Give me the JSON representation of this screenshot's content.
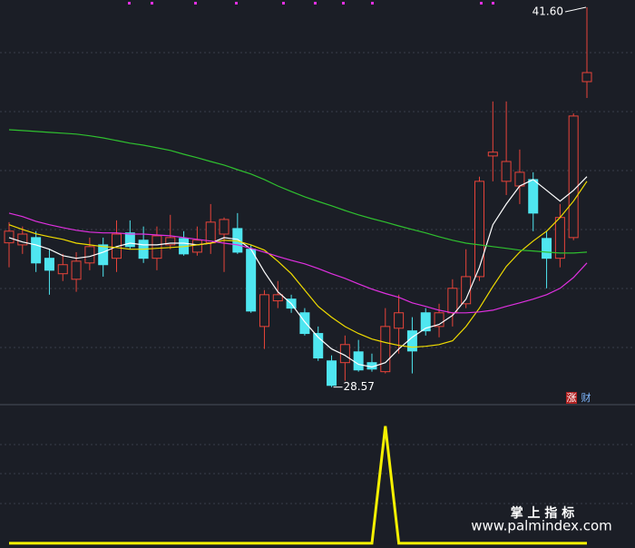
{
  "chart_data": [
    {
      "type": "candlestick",
      "up_color": "#e8443a",
      "down_color": "#4fe6f0",
      "ylim": [
        28.0,
        41.85
      ],
      "high_label": "41.60",
      "low_label": "28.57",
      "badges": [
        "涨",
        "财"
      ],
      "open": [
        33.52,
        33.45,
        33.7,
        32.99,
        32.46,
        32.27,
        32.83,
        33.45,
        32.99,
        33.86,
        33.61,
        32.99,
        33.45,
        33.67,
        33.2,
        33.52,
        33.82,
        34.01,
        33.3,
        30.65,
        31.53,
        31.59,
        31.12,
        30.41,
        29.47,
        29.41,
        29.78,
        29.41,
        29.1,
        30.59,
        30.5,
        31.12,
        30.65,
        31.12,
        31.43,
        32.36,
        36.5,
        35.63,
        35.47,
        35.69,
        33.67,
        32.99,
        33.7,
        39.05
      ],
      "close": [
        33.92,
        33.82,
        32.83,
        32.58,
        32.77,
        32.89,
        33.39,
        32.77,
        33.82,
        33.39,
        32.99,
        33.76,
        33.7,
        33.14,
        33.61,
        34.23,
        34.32,
        33.2,
        31.18,
        31.74,
        31.74,
        31.28,
        30.41,
        29.57,
        28.63,
        30.03,
        29.16,
        29.19,
        30.65,
        31.12,
        29.81,
        30.5,
        31.12,
        31.96,
        32.36,
        35.63,
        36.63,
        36.31,
        35.94,
        34.54,
        32.99,
        34.39,
        37.87,
        39.36
      ],
      "high": [
        34.23,
        34.08,
        33.92,
        33.3,
        33.14,
        33.2,
        33.7,
        33.7,
        34.29,
        34.29,
        34.08,
        34.08,
        34.48,
        33.92,
        34.08,
        34.85,
        34.39,
        34.54,
        33.45,
        31.9,
        32.21,
        31.74,
        31.28,
        30.65,
        29.66,
        30.34,
        30.19,
        29.72,
        31.28,
        31.74,
        30.97,
        31.28,
        31.43,
        32.27,
        33.3,
        35.79,
        38.37,
        38.37,
        36.72,
        35.94,
        33.92,
        34.85,
        37.96,
        41.6
      ],
      "low": [
        32.68,
        33.14,
        32.52,
        31.74,
        32.21,
        31.84,
        32.58,
        32.36,
        32.52,
        33.3,
        32.83,
        32.58,
        33.3,
        33.08,
        33.08,
        33.14,
        32.52,
        33.14,
        31.12,
        29.88,
        31.28,
        31.12,
        30.34,
        29.47,
        28.57,
        28.79,
        29.1,
        29.1,
        29.04,
        29.72,
        29.04,
        30.34,
        30.28,
        30.65,
        31.28,
        32.21,
        35.63,
        35.16,
        34.85,
        33.92,
        31.96,
        32.68,
        33.61,
        38.49
      ],
      "series": [
        {
          "color": "#ffffff",
          "values": [
            33.7,
            33.55,
            33.45,
            33.3,
            33.08,
            32.99,
            33.05,
            33.2,
            33.39,
            33.51,
            33.45,
            33.45,
            33.51,
            33.51,
            33.45,
            33.51,
            33.7,
            33.64,
            33.3,
            32.52,
            31.84,
            31.43,
            30.81,
            30.28,
            29.88,
            29.66,
            29.35,
            29.26,
            29.41,
            29.88,
            30.28,
            30.59,
            30.72,
            31.03,
            31.59,
            32.68,
            34.14,
            34.85,
            35.47,
            35.69,
            35.32,
            34.95,
            35.32,
            35.79
          ]
        },
        {
          "color": "#f0dc00",
          "values": [
            34.14,
            33.98,
            33.83,
            33.73,
            33.64,
            33.51,
            33.45,
            33.39,
            33.36,
            33.3,
            33.3,
            33.33,
            33.36,
            33.39,
            33.45,
            33.51,
            33.61,
            33.58,
            33.45,
            33.27,
            32.89,
            32.46,
            31.9,
            31.34,
            30.97,
            30.65,
            30.41,
            30.22,
            30.1,
            30.0,
            29.94,
            29.97,
            30.03,
            30.16,
            30.65,
            31.28,
            32.02,
            32.71,
            33.2,
            33.58,
            33.92,
            34.39,
            34.95,
            35.63
          ]
        },
        {
          "color": "#e030e0",
          "values": [
            34.54,
            34.42,
            34.26,
            34.14,
            34.04,
            33.95,
            33.89,
            33.86,
            33.86,
            33.82,
            33.82,
            33.79,
            33.76,
            33.7,
            33.64,
            33.58,
            33.51,
            33.45,
            33.33,
            33.2,
            33.05,
            32.92,
            32.8,
            32.64,
            32.46,
            32.3,
            32.11,
            31.93,
            31.78,
            31.65,
            31.46,
            31.34,
            31.21,
            31.12,
            31.12,
            31.15,
            31.21,
            31.34,
            31.46,
            31.59,
            31.74,
            31.96,
            32.33,
            32.83
          ]
        },
        {
          "color": "#2fc02f",
          "values": [
            37.4,
            37.37,
            37.34,
            37.31,
            37.28,
            37.25,
            37.19,
            37.12,
            37.03,
            36.94,
            36.87,
            36.78,
            36.69,
            36.56,
            36.44,
            36.31,
            36.19,
            36.03,
            35.88,
            35.69,
            35.47,
            35.28,
            35.1,
            34.94,
            34.79,
            34.63,
            34.48,
            34.35,
            34.23,
            34.1,
            33.98,
            33.86,
            33.73,
            33.61,
            33.51,
            33.45,
            33.39,
            33.33,
            33.27,
            33.24,
            33.2,
            33.17,
            33.17,
            33.2
          ]
        }
      ]
    },
    {
      "type": "line",
      "color": "#f5f000",
      "ylim": [
        -0.04,
        1.16
      ],
      "values": [
        0,
        0,
        0,
        0,
        0,
        0,
        0,
        0,
        0,
        0,
        0,
        0,
        0,
        0,
        0,
        0,
        0,
        0,
        0,
        0,
        0,
        0,
        0,
        0,
        0,
        0,
        0,
        0,
        1,
        0,
        0,
        0,
        0,
        0,
        0,
        0,
        0,
        0,
        0,
        0,
        0,
        0,
        0,
        0
      ]
    }
  ],
  "watermark": {
    "title": "掌 上 指 标",
    "url": "www.palmindex.com"
  }
}
